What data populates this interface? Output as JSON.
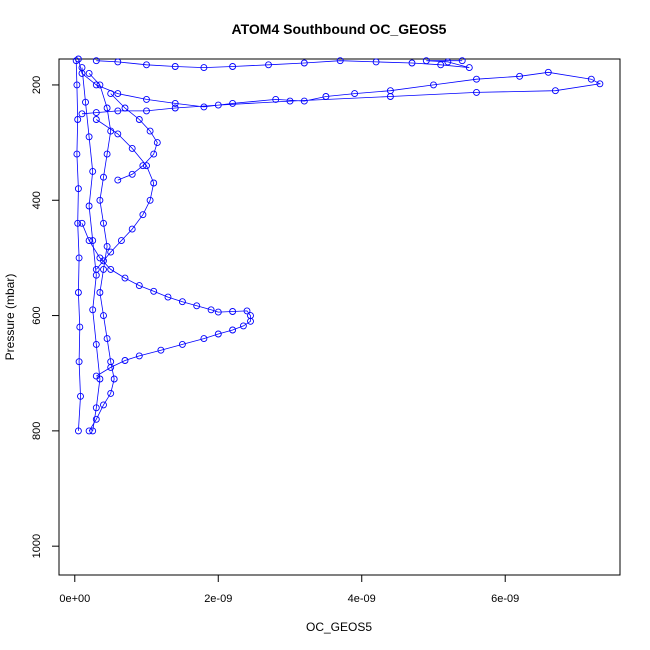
{
  "chart_data": {
    "type": "scatter",
    "title": "ATOM4 Southbound OC_GEOS5",
    "xlabel": "OC_GEOS5",
    "ylabel": "Pressure (mbar)",
    "xlim": [
      -2.2e-10,
      7.6e-09
    ],
    "ylim": [
      1050,
      155
    ],
    "y_reversed": true,
    "x_ticks": [
      {
        "value": 0,
        "label": "0e+00"
      },
      {
        "value": 2e-09,
        "label": "2e-09"
      },
      {
        "value": 4e-09,
        "label": "4e-09"
      },
      {
        "value": 6e-09,
        "label": "6e-09"
      }
    ],
    "y_ticks": [
      {
        "value": 200,
        "label": "200"
      },
      {
        "value": 400,
        "label": "400"
      },
      {
        "value": 600,
        "label": "600"
      },
      {
        "value": 800,
        "label": "800"
      },
      {
        "value": 1000,
        "label": "1000"
      }
    ],
    "grid": false,
    "marker": "open-circle",
    "series": [
      {
        "color": "#0000ff",
        "points": [
          [
            5e-11,
            155
          ],
          [
            1e-10,
            180
          ],
          [
            3e-10,
            200
          ],
          [
            6e-10,
            215
          ],
          [
            1e-09,
            225
          ],
          [
            1.4e-09,
            232
          ],
          [
            1.8e-09,
            238
          ],
          [
            2.2e-09,
            232
          ],
          [
            2.8e-09,
            225
          ],
          [
            3.2e-09,
            228
          ],
          [
            3.5e-09,
            220
          ],
          [
            3.9e-09,
            215
          ],
          [
            4.4e-09,
            210
          ],
          [
            5e-09,
            200
          ],
          [
            5.6e-09,
            190
          ],
          [
            6.2e-09,
            185
          ],
          [
            6.6e-09,
            178
          ],
          [
            7.2e-09,
            190
          ],
          [
            7.32e-09,
            198
          ],
          [
            6.7e-09,
            210
          ],
          [
            5.6e-09,
            213
          ],
          [
            4.4e-09,
            220
          ],
          [
            3e-09,
            228
          ],
          [
            2e-09,
            235
          ],
          [
            1.4e-09,
            240
          ],
          [
            1e-09,
            245
          ],
          [
            6e-10,
            245
          ],
          [
            3e-10,
            248
          ],
          [
            1e-10,
            250
          ]
        ]
      },
      {
        "color": "#0000ff",
        "points": [
          [
            3e-10,
            158
          ],
          [
            6e-10,
            160
          ],
          [
            1e-09,
            165
          ],
          [
            1.4e-09,
            168
          ],
          [
            1.8e-09,
            170
          ],
          [
            2.2e-09,
            168
          ],
          [
            2.7e-09,
            165
          ],
          [
            3.2e-09,
            162
          ],
          [
            3.7e-09,
            158
          ],
          [
            4.2e-09,
            160
          ],
          [
            4.7e-09,
            162
          ],
          [
            5.1e-09,
            165
          ],
          [
            5.5e-09,
            170
          ],
          [
            5.2e-09,
            160
          ],
          [
            4.9e-09,
            158
          ],
          [
            5.4e-09,
            158
          ]
        ]
      },
      {
        "color": "#0000ff",
        "points": [
          [
            1e-10,
            440
          ],
          [
            2e-10,
            470
          ],
          [
            3.5e-10,
            500
          ],
          [
            5e-10,
            520
          ],
          [
            7e-10,
            535
          ],
          [
            9e-10,
            548
          ],
          [
            1.1e-09,
            558
          ],
          [
            1.3e-09,
            568
          ],
          [
            1.5e-09,
            576
          ],
          [
            1.7e-09,
            583
          ],
          [
            1.9e-09,
            590
          ],
          [
            2e-09,
            594
          ],
          [
            2.2e-09,
            593
          ],
          [
            2.4e-09,
            592
          ],
          [
            2.45e-09,
            600
          ],
          [
            2.45e-09,
            610
          ],
          [
            2.35e-09,
            618
          ],
          [
            2.2e-09,
            625
          ],
          [
            2e-09,
            632
          ],
          [
            1.8e-09,
            640
          ],
          [
            1.5e-09,
            650
          ],
          [
            1.2e-09,
            660
          ],
          [
            9e-10,
            670
          ],
          [
            7e-10,
            678
          ],
          [
            5e-10,
            690
          ],
          [
            3e-10,
            705
          ]
        ]
      },
      {
        "color": "#0000ff",
        "points": [
          [
            3e-10,
            260
          ],
          [
            6e-10,
            285
          ],
          [
            8e-10,
            310
          ],
          [
            1e-09,
            340
          ],
          [
            1.1e-09,
            370
          ],
          [
            1.05e-09,
            400
          ],
          [
            9.5e-10,
            425
          ],
          [
            8e-10,
            450
          ],
          [
            6.5e-10,
            470
          ],
          [
            5e-10,
            490
          ],
          [
            4e-10,
            505
          ],
          [
            3e-10,
            520
          ]
        ]
      },
      {
        "color": "#0000ff",
        "points": [
          [
            5e-10,
            215
          ],
          [
            7e-10,
            240
          ],
          [
            9e-10,
            260
          ],
          [
            1.05e-09,
            280
          ],
          [
            1.15e-09,
            300
          ],
          [
            1.1e-09,
            320
          ],
          [
            9.5e-10,
            340
          ],
          [
            8e-10,
            355
          ],
          [
            6e-10,
            365
          ]
        ]
      },
      {
        "color": "#0000ff",
        "points": [
          [
            2e-10,
            180
          ],
          [
            3.5e-10,
            200
          ],
          [
            4.5e-10,
            240
          ],
          [
            5e-10,
            280
          ],
          [
            4.5e-10,
            320
          ],
          [
            4e-10,
            360
          ],
          [
            3.5e-10,
            400
          ],
          [
            4e-10,
            440
          ],
          [
            4.5e-10,
            480
          ],
          [
            4e-10,
            520
          ],
          [
            3.5e-10,
            560
          ],
          [
            4e-10,
            600
          ],
          [
            4.5e-10,
            640
          ],
          [
            5e-10,
            680
          ],
          [
            5.5e-10,
            710
          ],
          [
            5e-10,
            735
          ],
          [
            4e-10,
            755
          ],
          [
            3e-10,
            780
          ],
          [
            2e-10,
            800
          ]
        ]
      },
      {
        "color": "#0000ff",
        "points": [
          [
            2e-11,
            158
          ],
          [
            3e-11,
            200
          ],
          [
            4e-11,
            260
          ],
          [
            3e-11,
            320
          ],
          [
            5e-11,
            380
          ],
          [
            4e-11,
            440
          ],
          [
            6e-11,
            500
          ],
          [
            5e-11,
            560
          ],
          [
            7e-11,
            620
          ],
          [
            6e-11,
            680
          ],
          [
            8e-11,
            740
          ],
          [
            5e-11,
            800
          ]
        ]
      },
      {
        "color": "#0000ff",
        "points": [
          [
            1e-10,
            170
          ],
          [
            1.5e-10,
            230
          ],
          [
            2e-10,
            290
          ],
          [
            2.5e-10,
            350
          ],
          [
            2e-10,
            410
          ],
          [
            2.5e-10,
            470
          ],
          [
            3e-10,
            530
          ],
          [
            2.5e-10,
            590
          ],
          [
            3e-10,
            650
          ],
          [
            3.5e-10,
            710
          ],
          [
            3e-10,
            760
          ],
          [
            2.5e-10,
            800
          ]
        ]
      }
    ]
  }
}
